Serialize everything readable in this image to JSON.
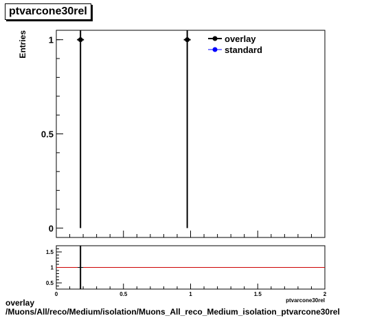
{
  "title": "ptvarcone30rel",
  "footer": {
    "line1": "overlay",
    "line2": "/Muons/All/reco/Medium/isolation/Muons_All_reco_Medium_isolation_ptvarcone30rel"
  },
  "chart_data": [
    {
      "type": "scatter",
      "title": "ptvarcone30rel",
      "xlabel": "ptvarcone30rel",
      "ylabel": "Entries",
      "xlim": [
        0,
        2
      ],
      "ylim": [
        -0.05,
        1.05
      ],
      "yticks": [
        0,
        0.5,
        1
      ],
      "ytick_labels": [
        "0",
        "0.5",
        "1"
      ],
      "legend_placement": "top-right",
      "colors": {
        "overlay": "#000000",
        "standard": "#0000ff"
      },
      "series": [
        {
          "name": "overlay",
          "points": [
            {
              "x": 0.18,
              "y": 1,
              "yerr": 1
            },
            {
              "x": 0.975,
              "y": 1,
              "yerr": 1
            }
          ]
        },
        {
          "name": "standard",
          "points": []
        }
      ]
    },
    {
      "type": "scatter",
      "xlim": [
        0,
        2
      ],
      "ylim": [
        0.3,
        1.7
      ],
      "xticks": [
        0,
        0.5,
        1,
        1.5,
        2
      ],
      "xtick_labels": [
        "0",
        "0.5",
        "1",
        "1.5",
        "2"
      ],
      "yticks": [
        0.5,
        1,
        1.5
      ],
      "ytick_labels": [
        "0.5",
        "1",
        "1.5"
      ],
      "reference_line": {
        "y": 1,
        "color": "#cc0000"
      },
      "points": [
        {
          "x": 0.18,
          "y": 1,
          "yerr": 1
        }
      ]
    }
  ]
}
